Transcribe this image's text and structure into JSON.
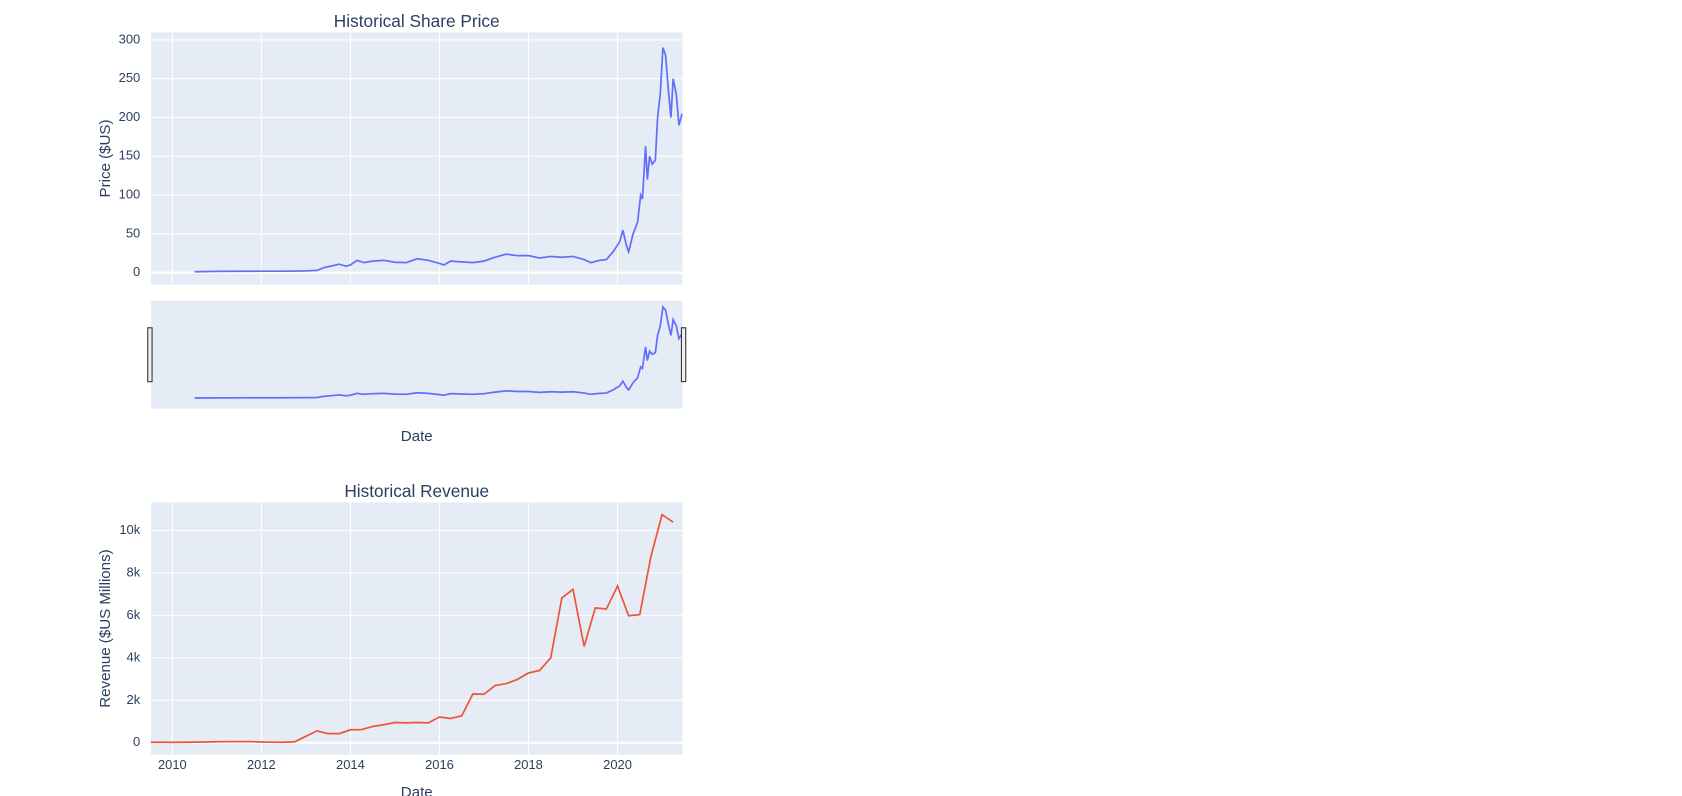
{
  "chart_data": [
    {
      "type": "line",
      "title": "Historical Share Price",
      "y_label": "Price ($US)",
      "x_label": "Date",
      "color": "#636efa",
      "range_slider": true,
      "grid": true,
      "x": [
        2010.5,
        2011.0,
        2011.5,
        2012.0,
        2012.5,
        2013.0,
        2013.25,
        2013.4,
        2013.6,
        2013.75,
        2013.9,
        2014.0,
        2014.15,
        2014.3,
        2014.5,
        2014.75,
        2015.0,
        2015.25,
        2015.5,
        2015.75,
        2016.0,
        2016.1,
        2016.25,
        2016.5,
        2016.75,
        2017.0,
        2017.25,
        2017.5,
        2017.75,
        2018.0,
        2018.25,
        2018.5,
        2018.75,
        2019.0,
        2019.25,
        2019.4,
        2019.6,
        2019.75,
        2019.9,
        2020.05,
        2020.12,
        2020.2,
        2020.25,
        2020.35,
        2020.45,
        2020.52,
        2020.56,
        2020.63,
        2020.67,
        2020.72,
        2020.78,
        2020.85,
        2020.9,
        2020.96,
        2021.02,
        2021.08,
        2021.15,
        2021.2,
        2021.25,
        2021.32,
        2021.38,
        2021.45
      ],
      "values": [
        1.3,
        1.8,
        1.9,
        2.0,
        2.0,
        2.4,
        3,
        6.5,
        9,
        11,
        8.5,
        10,
        16,
        13,
        15,
        16,
        13.5,
        13,
        18,
        16,
        12,
        10,
        15,
        14,
        13,
        15,
        20,
        24,
        22,
        22,
        19,
        21,
        20,
        21,
        17,
        13,
        16,
        17,
        27,
        40,
        55,
        35,
        27,
        50,
        65,
        100,
        95,
        163,
        120,
        150,
        140,
        145,
        200,
        230,
        290,
        280,
        230,
        200,
        250,
        230,
        190,
        205
      ],
      "xlim": [
        2009.52,
        2021.46
      ],
      "xticks": [
        2010,
        2012,
        2014,
        2016,
        2018,
        2020
      ],
      "ylim": [
        -15.3,
        309.7
      ],
      "yticks": [
        0,
        50,
        100,
        150,
        200,
        250,
        300
      ]
    },
    {
      "type": "line",
      "title": "Historical Revenue",
      "y_label": "Revenue ($US Millions)",
      "x_label": "Date",
      "color": "#ef553b",
      "range_slider": false,
      "grid": true,
      "x": [
        2009.5,
        2009.75,
        2010.0,
        2010.25,
        2010.5,
        2010.75,
        2011.0,
        2011.25,
        2011.5,
        2011.75,
        2012.0,
        2012.25,
        2012.5,
        2012.75,
        2013.0,
        2013.25,
        2013.5,
        2013.75,
        2014.0,
        2014.25,
        2014.5,
        2014.75,
        2015.0,
        2015.25,
        2015.5,
        2015.75,
        2016.0,
        2016.25,
        2016.5,
        2016.75,
        2017.0,
        2017.25,
        2017.5,
        2017.75,
        2018.0,
        2018.25,
        2018.5,
        2018.75,
        2019.0,
        2019.25,
        2019.5,
        2019.75,
        2020.0,
        2020.25,
        2020.5,
        2020.75,
        2021.0,
        2021.25
      ],
      "values": [
        20,
        30,
        20,
        28,
        31,
        36,
        49,
        58,
        58,
        57,
        39,
        30,
        27,
        50,
        306,
        562,
        431,
        433,
        615,
        621,
        769,
        852,
        957,
        940,
        955,
        937,
        1214,
        1147,
        1270,
        2298,
        2285,
        2696,
        2790,
        2985,
        3288,
        3409,
        4002,
        6824,
        7226,
        4541,
        6350,
        6303,
        7384,
        5985,
        6036,
        8771,
        10744,
        10389
      ],
      "xlim": [
        2009.52,
        2021.46
      ],
      "xticks": [
        2010,
        2012,
        2014,
        2016,
        2018,
        2020
      ],
      "ylim": [
        -560,
        11320
      ],
      "yticks": [
        0,
        {
          "value": 2000,
          "label": "2k"
        },
        {
          "value": 4000,
          "label": "4k"
        },
        {
          "value": 6000,
          "label": "6k"
        },
        {
          "value": 8000,
          "label": "8k"
        },
        {
          "value": 10000,
          "label": "10k"
        }
      ]
    }
  ]
}
